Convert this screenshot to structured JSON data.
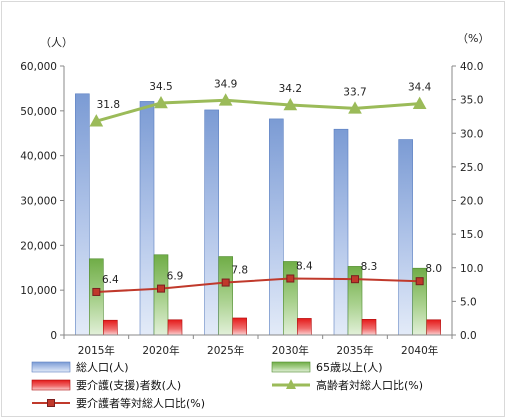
{
  "chart_data": {
    "type": "bar",
    "categories": [
      "2015年",
      "2020年",
      "2025年",
      "2030年",
      "2035年",
      "2040年"
    ],
    "left_axis": {
      "unit": "（人）",
      "min": 0,
      "max": 60000,
      "step": 10000,
      "tick_labels": [
        "0",
        "10,000",
        "20,000",
        "30,000",
        "40,000",
        "50,000",
        "60,000"
      ]
    },
    "right_axis": {
      "unit": "（%）",
      "min": 0,
      "max": 40,
      "step": 5,
      "tick_labels": [
        "0.0",
        "5.0",
        "10.0",
        "15.0",
        "20.0",
        "25.0",
        "30.0",
        "35.0",
        "40.0"
      ]
    },
    "grid": false,
    "legend_position": "bottom",
    "series": [
      {
        "name": "総人口(人)",
        "type": "bar",
        "axis": "left",
        "color": "#8eaadb",
        "values": [
          53800,
          52100,
          50200,
          48200,
          45900,
          43600
        ]
      },
      {
        "name": "65歳以上(人)",
        "type": "bar",
        "axis": "left",
        "color": "#70ad47",
        "values": [
          17000,
          17900,
          17500,
          16400,
          15300,
          14900
        ]
      },
      {
        "name": "要介護(支援)者数(人)",
        "type": "bar",
        "axis": "left",
        "color": "#e02020",
        "values": [
          3300,
          3400,
          3800,
          3700,
          3500,
          3400
        ]
      },
      {
        "name": "高齢者対総人口比(%)",
        "type": "line",
        "axis": "right",
        "color": "#9bbb59",
        "marker": "triangle",
        "values": [
          31.8,
          34.5,
          34.9,
          34.2,
          33.7,
          34.4
        ],
        "labels": [
          "31.8",
          "34.5",
          "34.9",
          "34.2",
          "33.7",
          "34.4"
        ]
      },
      {
        "name": "要介護者等対総人口比(%)",
        "type": "line",
        "axis": "right",
        "color": "#c0392b",
        "marker": "square",
        "values": [
          6.4,
          6.9,
          7.8,
          8.4,
          8.3,
          8.0
        ],
        "labels": [
          "6.4",
          "6.9",
          "7.8",
          "8.4",
          "8.3",
          "8.0"
        ]
      }
    ]
  }
}
